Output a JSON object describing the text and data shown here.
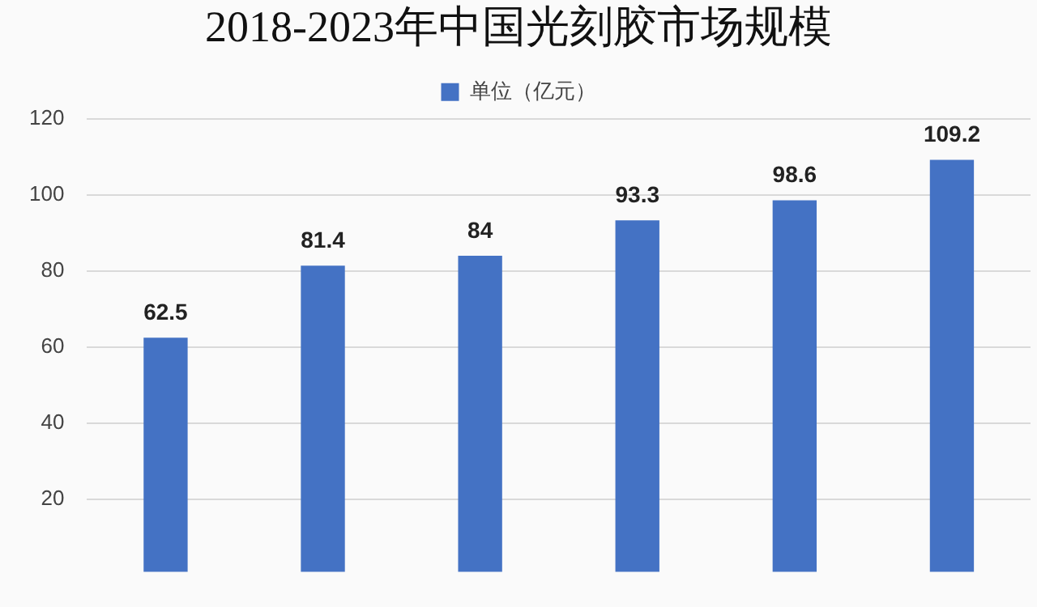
{
  "chart_data": {
    "type": "bar",
    "title": "2018-2023年中国光刻胶市场规模",
    "categories": [
      null,
      null,
      null,
      null,
      null,
      null
    ],
    "series": [
      {
        "name": "单位（亿元）",
        "color": "#4472c4",
        "values": [
          62.5,
          81.4,
          84,
          93.3,
          98.6,
          109.2
        ]
      }
    ],
    "ylim": [
      1,
      120
    ],
    "yticks": [
      20,
      40,
      60,
      80,
      100,
      120
    ],
    "grid": "y",
    "legend": "top",
    "data_labels": true,
    "tick_labels": "y"
  }
}
